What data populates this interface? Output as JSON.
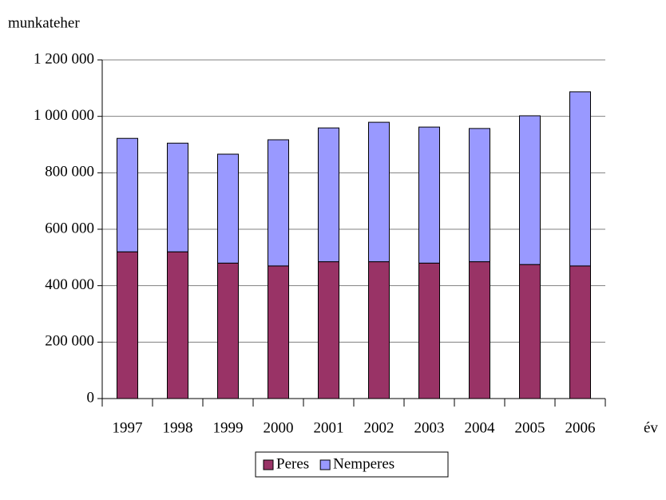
{
  "chart_data": {
    "type": "stacked_bar",
    "y_axis_title": "munkateher",
    "x_axis_title": "év",
    "categories": [
      "1997",
      "1998",
      "1999",
      "2000",
      "2001",
      "2002",
      "2003",
      "2004",
      "2005",
      "2006"
    ],
    "series": [
      {
        "name": "Peres",
        "color": "#993366",
        "values": [
          520000,
          520000,
          480000,
          470000,
          485000,
          485000,
          480000,
          485000,
          475000,
          470000
        ]
      },
      {
        "name": "Nemperes",
        "color": "#9999ff",
        "values": [
          402000,
          385000,
          386000,
          447000,
          474000,
          494000,
          482000,
          472000,
          527000,
          617000
        ]
      }
    ],
    "ylim": [
      0,
      1200000
    ],
    "yticks": [
      0,
      {
        "value": 200000,
        "label": "200 000"
      },
      {
        "value": 400000,
        "label": "400 000"
      },
      {
        "value": 600000,
        "label": "600 000"
      },
      {
        "value": 800000,
        "label": "800 000"
      },
      {
        "value": 1000000,
        "label": "1 000 000"
      },
      {
        "value": 1200000,
        "label": "1 200 000"
      }
    ],
    "grid": true,
    "legend": "bottom"
  }
}
